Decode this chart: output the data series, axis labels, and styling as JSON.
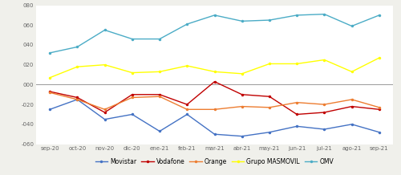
{
  "months": [
    "sep-20",
    "oct-20",
    "nov-20",
    "dic-20",
    "ene-21",
    "feb-21",
    "mar-21",
    "abr-21",
    "may-21",
    "jun-21",
    "jul-21",
    "ago-21",
    "sep-21"
  ],
  "movistar": [
    -25,
    -15,
    -35,
    -30,
    -47,
    -30,
    -50,
    -52,
    -48,
    -42,
    -45,
    -40,
    -48
  ],
  "vodafone": [
    -7,
    -13,
    -28,
    -10,
    -10,
    -20,
    3,
    -10,
    -12,
    -30,
    -28,
    -22,
    -25
  ],
  "orange": [
    -8,
    -15,
    -25,
    -13,
    -12,
    -25,
    -25,
    -22,
    -23,
    -18,
    -20,
    -15,
    -23
  ],
  "grupo_masmovil": [
    7,
    18,
    20,
    12,
    13,
    19,
    13,
    11,
    21,
    21,
    25,
    13,
    27
  ],
  "omv": [
    32,
    38,
    55,
    46,
    46,
    61,
    70,
    64,
    65,
    70,
    71,
    59,
    70
  ],
  "colors": {
    "movistar": "#4472C4",
    "vodafone": "#C00000",
    "orange": "#ED7D31",
    "grupo_masmovil": "#FFFF00",
    "omv": "#4BACC6"
  },
  "ylim": [
    -60,
    80
  ],
  "yticks": [
    -60,
    -40,
    -20,
    0,
    20,
    40,
    60,
    80
  ],
  "ytick_labels": [
    "-060",
    "-040",
    "-020",
    "000",
    "020",
    "040",
    "060",
    "080"
  ],
  "bg_color": "#f0f0eb",
  "plot_bg": "#ffffff",
  "legend_labels": [
    "Movistar",
    "Vodafone",
    "Orange",
    "Grupo MASMOVIL",
    "OMV"
  ],
  "zero_line_color": "#999999"
}
